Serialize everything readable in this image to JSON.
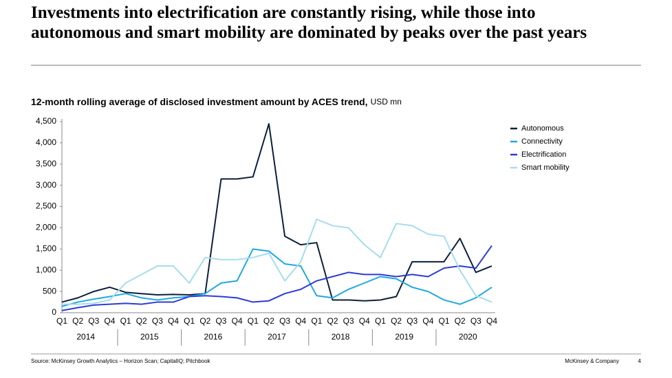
{
  "slide_title": "Investments into electrification are constantly rising, while those into autonomous and smart mobility are dominated by peaks over the past years",
  "chart_data": {
    "type": "line",
    "title": "12-month rolling average of disclosed investment amount by ACES trend,",
    "unit": "USD mn",
    "categories": [
      "Q1",
      "Q2",
      "Q3",
      "Q4",
      "Q1",
      "Q2",
      "Q3",
      "Q4",
      "Q1",
      "Q2",
      "Q3",
      "Q4",
      "Q1",
      "Q2",
      "Q3",
      "Q4",
      "Q1",
      "Q2",
      "Q3",
      "Q4",
      "Q1",
      "Q2",
      "Q3",
      "Q4",
      "Q1",
      "Q2",
      "Q3",
      "Q4"
    ],
    "year_groups": [
      "2014",
      "2015",
      "2016",
      "2017",
      "2018",
      "2019",
      "2020"
    ],
    "series": [
      {
        "name": "Autonomous",
        "color": "#0b1f3a",
        "values": [
          250,
          350,
          500,
          600,
          480,
          450,
          420,
          430,
          420,
          450,
          3150,
          3150,
          3200,
          4450,
          1800,
          1600,
          1650,
          300,
          300,
          280,
          300,
          380,
          1200,
          1200,
          1200,
          1750,
          950,
          1100
        ]
      },
      {
        "name": "Connectivity",
        "color": "#1fa8e0",
        "values": [
          150,
          250,
          320,
          380,
          450,
          350,
          300,
          350,
          380,
          450,
          700,
          750,
          1500,
          1450,
          1150,
          1100,
          400,
          350,
          550,
          700,
          850,
          800,
          600,
          500,
          300,
          200,
          350,
          600
        ]
      },
      {
        "name": "Electrification",
        "color": "#2b3bd6",
        "values": [
          50,
          120,
          180,
          200,
          220,
          200,
          250,
          250,
          380,
          400,
          380,
          350,
          250,
          280,
          450,
          550,
          750,
          850,
          950,
          900,
          900,
          850,
          900,
          850,
          1050,
          1100,
          1050,
          1580
        ]
      },
      {
        "name": "Smart mobility",
        "color": "#a6dcee",
        "values": [
          200,
          200,
          220,
          300,
          700,
          900,
          1100,
          1100,
          700,
          1300,
          1250,
          1250,
          1300,
          1400,
          750,
          1200,
          2200,
          2050,
          2000,
          1600,
          1300,
          2100,
          2050,
          1850,
          1800,
          1000,
          400,
          250
        ]
      }
    ],
    "ylim": [
      0,
      4500
    ],
    "yticks": [
      0,
      500,
      {
        "value": 1000,
        "label": "1,000"
      },
      {
        "value": 1500,
        "label": "1,500"
      },
      {
        "value": 2000,
        "label": "2,000"
      },
      {
        "value": 2500,
        "label": "2,500"
      },
      {
        "value": 3000,
        "label": "3,000"
      },
      {
        "value": 3500,
        "label": "3,500"
      },
      {
        "value": 4000,
        "label": "4,000"
      },
      {
        "value": 4500,
        "label": "4,500"
      }
    ],
    "legend": "right"
  },
  "footer": {
    "source": "Source: McKinsey Growth Analytics – Horizon Scan; CapitalIQ; Pitchbook",
    "company": "McKinsey & Company",
    "page": "4"
  }
}
